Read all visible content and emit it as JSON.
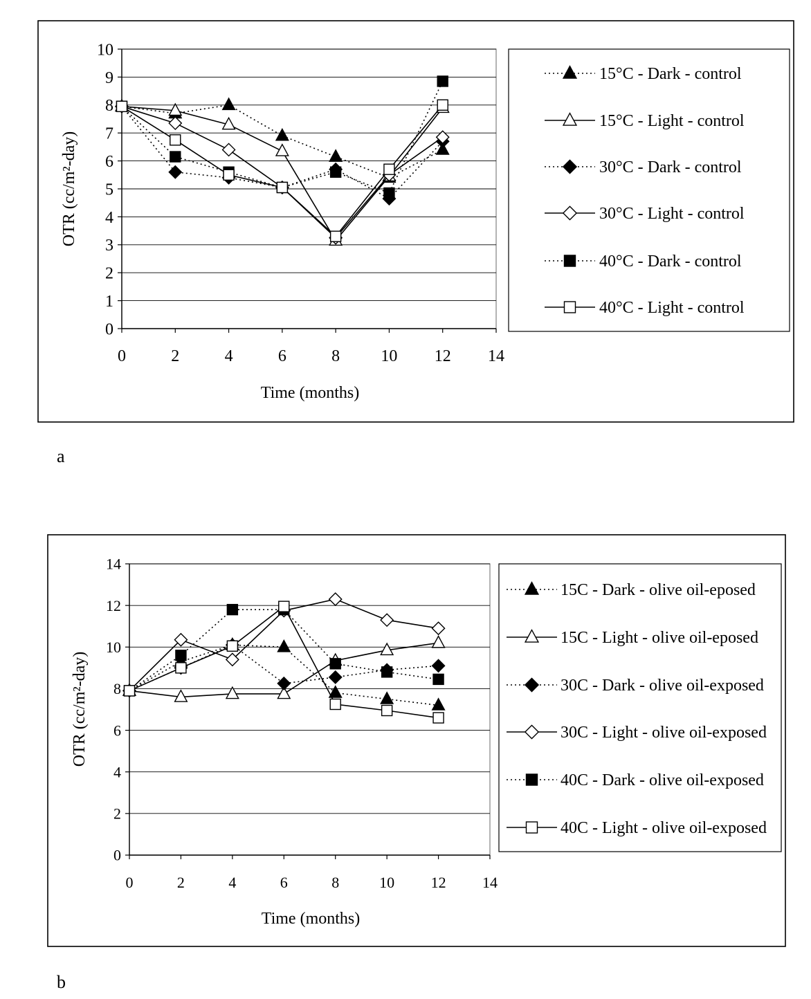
{
  "chart_data": [
    {
      "panel_label": "a",
      "type": "line",
      "xlabel": "Time (months)",
      "ylabel": "OTR (cc/m²-day)",
      "xlim": [
        0,
        14
      ],
      "ylim": [
        0,
        10
      ],
      "xticks": [
        0,
        2,
        4,
        6,
        8,
        10,
        12,
        14
      ],
      "yticks": [
        0,
        1,
        2,
        3,
        4,
        5,
        6,
        7,
        8,
        9,
        10
      ],
      "grid": "horizontal",
      "legend_position": "right",
      "x": [
        0,
        2,
        4,
        6,
        8,
        10,
        12
      ],
      "series": [
        {
          "name": "15°C - Dark - control",
          "marker": "triangle-filled",
          "line": "dotted",
          "values": [
            7.95,
            7.7,
            8.0,
            6.9,
            6.15,
            5.4,
            6.4
          ]
        },
        {
          "name": "15°C - Light - control",
          "marker": "triangle-open",
          "line": "solid",
          "values": [
            7.95,
            7.8,
            7.3,
            6.35,
            3.15,
            5.45,
            7.9
          ]
        },
        {
          "name": "30°C - Dark - control",
          "marker": "diamond-filled",
          "line": "dotted",
          "values": [
            7.95,
            5.6,
            5.4,
            5.05,
            5.7,
            4.65,
            6.7
          ]
        },
        {
          "name": "30°C - Light - control",
          "marker": "diamond-open",
          "line": "solid",
          "values": [
            7.95,
            7.35,
            6.4,
            5.05,
            3.25,
            5.5,
            6.85
          ]
        },
        {
          "name": "40°C - Dark - control",
          "marker": "square-filled",
          "line": "dotted",
          "values": [
            7.95,
            6.15,
            5.6,
            5.05,
            5.6,
            4.85,
            8.85
          ]
        },
        {
          "name": "40°C - Light - control",
          "marker": "square-open",
          "line": "solid",
          "values": [
            7.95,
            6.75,
            5.5,
            5.05,
            3.3,
            5.7,
            8.0
          ]
        }
      ]
    },
    {
      "panel_label": "b",
      "type": "line",
      "xlabel": "Time (months)",
      "ylabel": "OTR (cc/m²-day)",
      "xlim": [
        0,
        14
      ],
      "ylim": [
        0,
        14
      ],
      "xticks": [
        0,
        2,
        4,
        6,
        8,
        10,
        12,
        14
      ],
      "yticks": [
        0,
        2,
        4,
        6,
        8,
        10,
        12,
        14
      ],
      "grid": "horizontal",
      "legend_position": "right",
      "x": [
        0,
        2,
        4,
        6,
        8,
        10,
        12
      ],
      "series": [
        {
          "name": "15C - Dark - olive oil-eposed",
          "marker": "triangle-filled",
          "line": "dotted",
          "values": [
            7.9,
            9.3,
            10.1,
            10.0,
            7.8,
            7.5,
            7.2
          ]
        },
        {
          "name": "15C - Light - olive oil-eposed",
          "marker": "triangle-open",
          "line": "solid",
          "values": [
            7.9,
            7.6,
            7.75,
            7.75,
            9.35,
            9.85,
            10.2
          ]
        },
        {
          "name": "30C - Dark - olive oil-exposed",
          "marker": "diamond-filled",
          "line": "dotted",
          "values": [
            7.9,
            9.0,
            10.1,
            8.25,
            8.55,
            8.9,
            9.1
          ]
        },
        {
          "name": "30C - Light - olive oil-exposed",
          "marker": "diamond-open",
          "line": "solid",
          "values": [
            7.9,
            10.35,
            9.4,
            11.75,
            12.3,
            11.3,
            10.9
          ]
        },
        {
          "name": "40C - Dark - olive oil-exposed",
          "marker": "square-filled",
          "line": "dotted",
          "values": [
            7.9,
            9.6,
            11.8,
            11.8,
            9.2,
            8.8,
            8.45
          ]
        },
        {
          "name": "40C - Light - olive oil-exposed",
          "marker": "square-open",
          "line": "solid",
          "values": [
            7.9,
            9.0,
            10.05,
            11.95,
            7.25,
            6.95,
            6.6
          ]
        }
      ]
    }
  ]
}
